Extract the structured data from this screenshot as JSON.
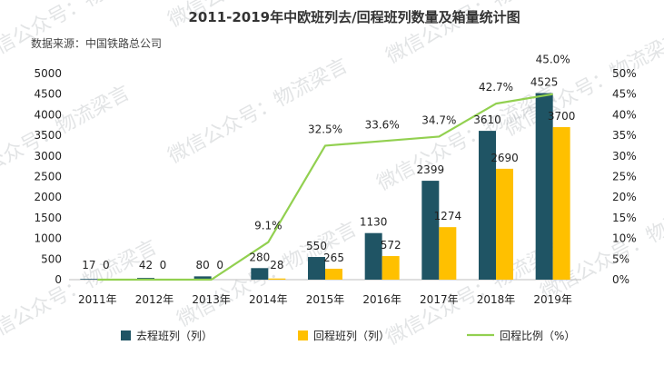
{
  "chart_data": {
    "type": "bar",
    "title": "2011-2019年中欧班列去/回程班列数量及箱量统计图",
    "source": "数据来源：中国铁路总公司",
    "categories": [
      "2011年",
      "2012年",
      "2013年",
      "2014年",
      "2015年",
      "2016年",
      "2017年",
      "2018年",
      "2019年"
    ],
    "series": [
      {
        "name": "去程班列（列）",
        "type": "bar",
        "color": "#1f5464",
        "values": [
          17,
          42,
          80,
          280,
          550,
          1130,
          2399,
          3610,
          4525
        ],
        "labels": [
          "17",
          "42",
          "80",
          "280",
          "550",
          "1130",
          "2399",
          "3610",
          "4525"
        ]
      },
      {
        "name": "回程班列（列）",
        "type": "bar",
        "color": "#ffc000",
        "values": [
          0,
          0,
          0,
          28,
          265,
          572,
          1274,
          2690,
          3700
        ],
        "labels": [
          "0",
          "0",
          "0",
          "28",
          "265",
          "572",
          "1274",
          "2690",
          "3700"
        ]
      },
      {
        "name": "回程比例（%）",
        "type": "line",
        "axis": "right",
        "color": "#92d050",
        "values": [
          0,
          0,
          0,
          9.1,
          32.5,
          33.6,
          34.7,
          42.7,
          45.0
        ],
        "labels": [
          "",
          "",
          "",
          "9.1%",
          "32.5%",
          "33.6%",
          "34.7%",
          "42.7%",
          "45.0%"
        ]
      }
    ],
    "ylim": [
      0,
      5000
    ],
    "yticks": [
      "0",
      "500",
      "1000",
      "1500",
      "2000",
      "2500",
      "3000",
      "3500",
      "4000",
      "4500",
      "5000"
    ],
    "y2lim": [
      0,
      50
    ],
    "y2ticks": [
      "0%",
      "5%",
      "10%",
      "15%",
      "20%",
      "25%",
      "30%",
      "35%",
      "40%",
      "45%",
      "50%"
    ],
    "legend_position": "bottom",
    "grid": false
  },
  "watermark": "微信公众号：物流梁言"
}
